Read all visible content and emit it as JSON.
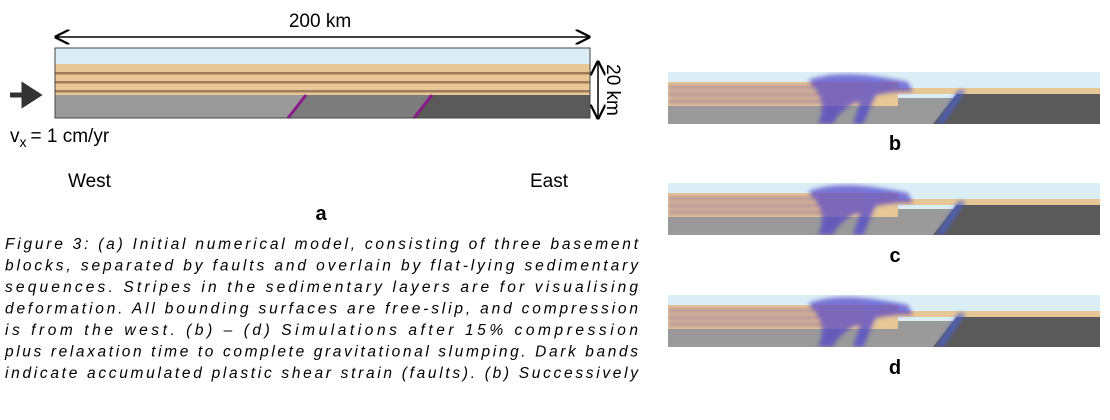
{
  "panel_a": {
    "width_label": "200 km",
    "depth_label": "20 km",
    "velocity": {
      "symbol": "v",
      "subscript": "x",
      "value": "= 1 cm/yr"
    },
    "west": "West",
    "east": "East",
    "label": "a"
  },
  "panels": [
    {
      "label": "b"
    },
    {
      "label": "c"
    },
    {
      "label": "d"
    }
  ],
  "caption": {
    "lines": [
      "Figure 3: (a) Initial numerical model, consisting of three basement",
      "blocks, separated by faults and overlain by flat-lying sedimentary",
      "sequences.  Stripes in the sedimentary layers are for visualising",
      "deformation.  All bounding surfaces are free-slip, and compression",
      "is from the west.  (b) – (d) Simulations after 15% compression",
      "plus relaxation time to complete gravitational slumping. Dark bands",
      "indicate accumulated plastic shear strain (faults).  (b) Successively"
    ]
  }
}
